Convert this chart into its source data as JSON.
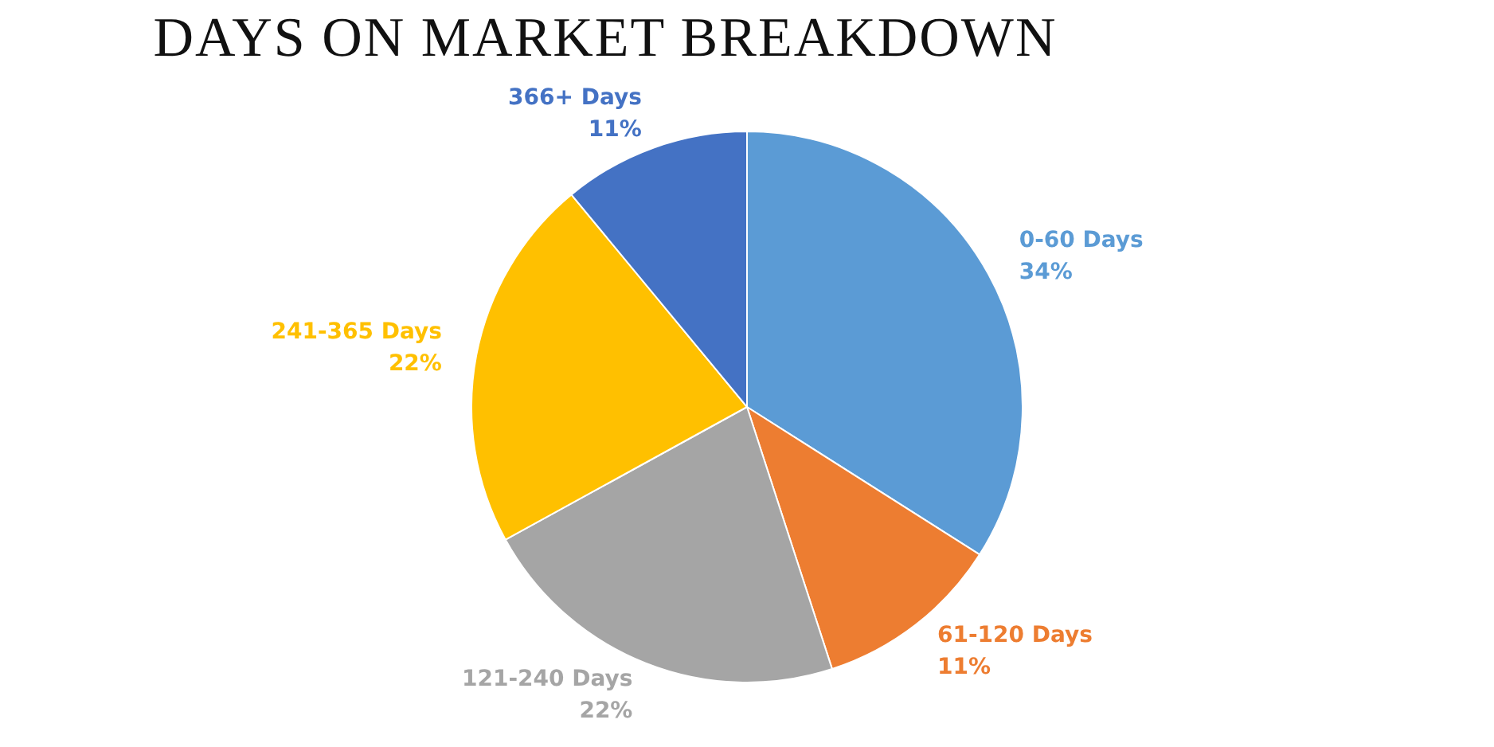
{
  "chart_data": {
    "type": "pie",
    "title": "DAYS ON MARKET BREAKDOWN",
    "categories": [
      "0-60 Days",
      "61-120 Days",
      "121-240 Days",
      "241-365 Days",
      "366+ Days"
    ],
    "values": [
      34,
      11,
      22,
      22,
      11
    ],
    "colors": [
      "#5b9bd5",
      "#ed7d31",
      "#a5a5a5",
      "#ffc000",
      "#4472c4"
    ],
    "value_labels": [
      "34%",
      "11%",
      "22%",
      "22%",
      "11%"
    ],
    "legend": false
  }
}
